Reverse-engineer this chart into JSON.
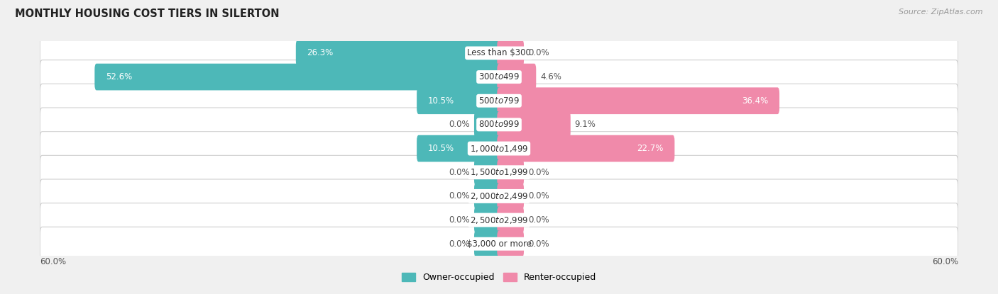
{
  "title": "MONTHLY HOUSING COST TIERS IN SILERTON",
  "source": "Source: ZipAtlas.com",
  "categories": [
    "Less than $300",
    "$300 to $499",
    "$500 to $799",
    "$800 to $999",
    "$1,000 to $1,499",
    "$1,500 to $1,999",
    "$2,000 to $2,499",
    "$2,500 to $2,999",
    "$3,000 or more"
  ],
  "owner_values": [
    26.3,
    52.6,
    10.5,
    0.0,
    10.5,
    0.0,
    0.0,
    0.0,
    0.0
  ],
  "renter_values": [
    0.0,
    4.6,
    36.4,
    9.1,
    22.7,
    0.0,
    0.0,
    0.0,
    0.0
  ],
  "owner_color": "#4db8b8",
  "renter_color": "#f08aaa",
  "owner_label": "Owner-occupied",
  "renter_label": "Renter-occupied",
  "axis_limit": 60.0,
  "axis_label_left": "60.0%",
  "axis_label_right": "60.0%",
  "bg_color": "#f0f0f0",
  "bar_row_color": "#ffffff",
  "bar_row_edge": "#d0d0d0",
  "stub_value": 3.0,
  "title_fontsize": 10.5,
  "source_fontsize": 8,
  "label_fontsize": 8.5,
  "category_fontsize": 8.5,
  "legend_fontsize": 9
}
